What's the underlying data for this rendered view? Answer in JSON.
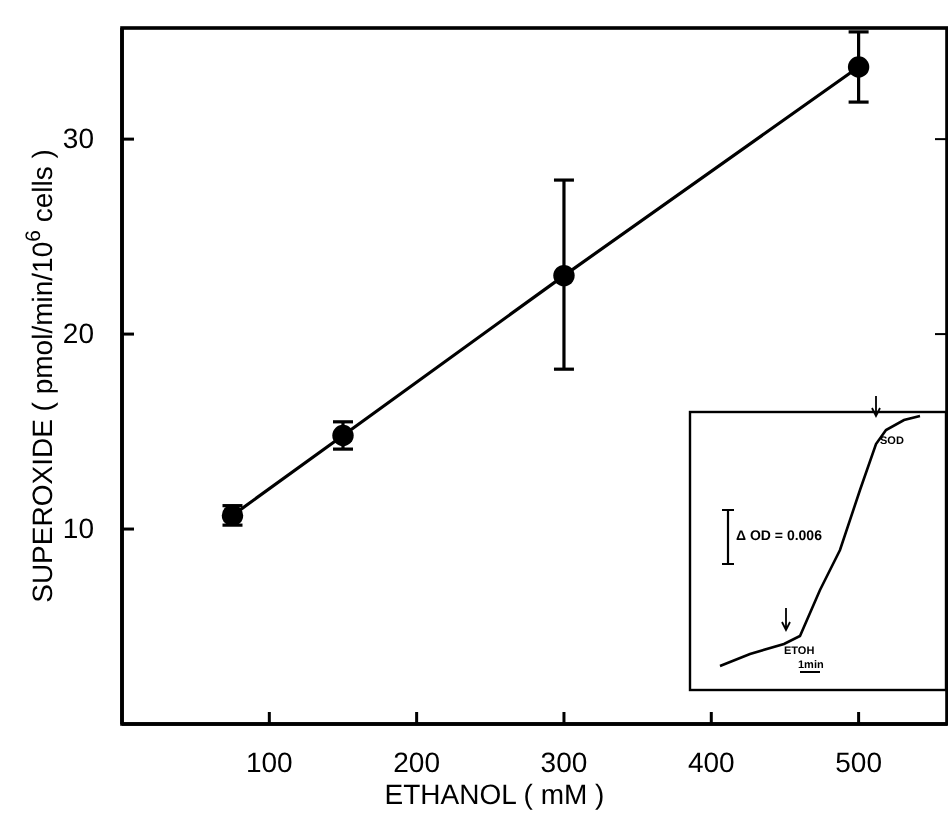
{
  "chart_data": {
    "type": "line",
    "xlabel": "ETHANOL ( mM )",
    "ylabel": "SUPEROXIDE ( pmol/min/10$^{6}$ cells )",
    "x": [
      75,
      150,
      300,
      500
    ],
    "values": [
      10.7,
      14.8,
      23.0,
      33.7
    ],
    "errors": [
      0.5,
      0.7,
      [
        18.2,
        27.9
      ],
      [
        31.9,
        35.5
      ]
    ],
    "color": "#000000",
    "marker": "circle",
    "line_style": "solid",
    "xlim": [
      0,
      560
    ],
    "ylim": [
      0,
      35.7
    ],
    "xticks": [
      100,
      200,
      300,
      400,
      500
    ],
    "yticks": [
      10,
      20,
      30
    ],
    "annotations": [
      "Δ OD = 0.006",
      "ETOH",
      "SOD",
      "1min"
    ]
  }
}
